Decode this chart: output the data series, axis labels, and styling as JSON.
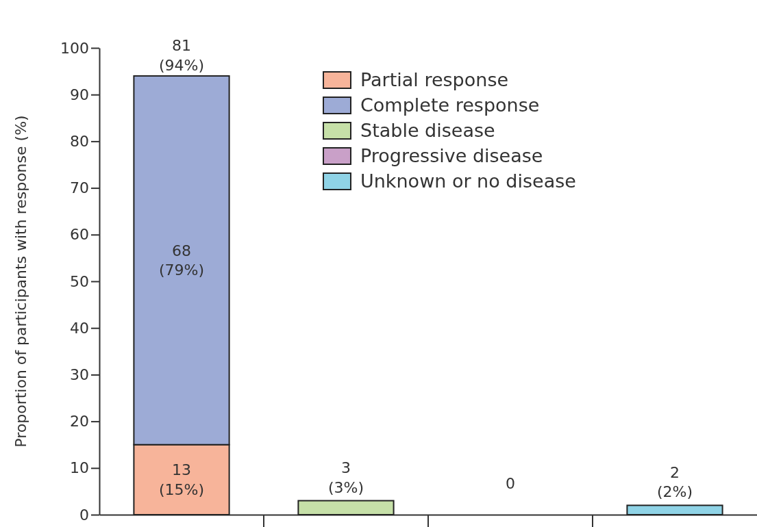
{
  "chart_data": {
    "type": "bar",
    "stacked": true,
    "ylabel": "Proportion of participants with response (%)",
    "categories": [
      null,
      null,
      null,
      null
    ],
    "ylim": [
      0,
      100
    ],
    "yticks": [
      0,
      10,
      20,
      30,
      40,
      50,
      60,
      70,
      80,
      90,
      100
    ],
    "grid": false,
    "legend": "top",
    "series": [
      {
        "name": "Partial response",
        "color": "#f7b49a",
        "values": [
          15,
          null,
          null,
          null
        ],
        "value_labels": [
          "13\n(15%)",
          null,
          null,
          null
        ]
      },
      {
        "name": "Complete response",
        "color": "#9dabd6",
        "values": [
          79,
          null,
          null,
          null
        ],
        "value_labels": [
          "68\n(79%)",
          null,
          null,
          null
        ]
      },
      {
        "name": "Stable disease",
        "color": "#c6e0a8",
        "values": [
          null,
          3,
          null,
          null
        ],
        "value_labels": [
          null,
          "3\n(3%)",
          null,
          null
        ]
      },
      {
        "name": "Progressive disease",
        "color": "#c9a0c8",
        "values": [
          null,
          null,
          0,
          null
        ],
        "value_labels": [
          null,
          null,
          "0",
          null
        ]
      },
      {
        "name": "Unknown or no disease",
        "color": "#8fd3e6",
        "values": [
          null,
          null,
          null,
          2
        ],
        "value_labels": [
          null,
          null,
          null,
          "2\n(2%)"
        ]
      }
    ],
    "totals": [
      "81\n(94%)",
      null,
      null,
      null
    ]
  }
}
